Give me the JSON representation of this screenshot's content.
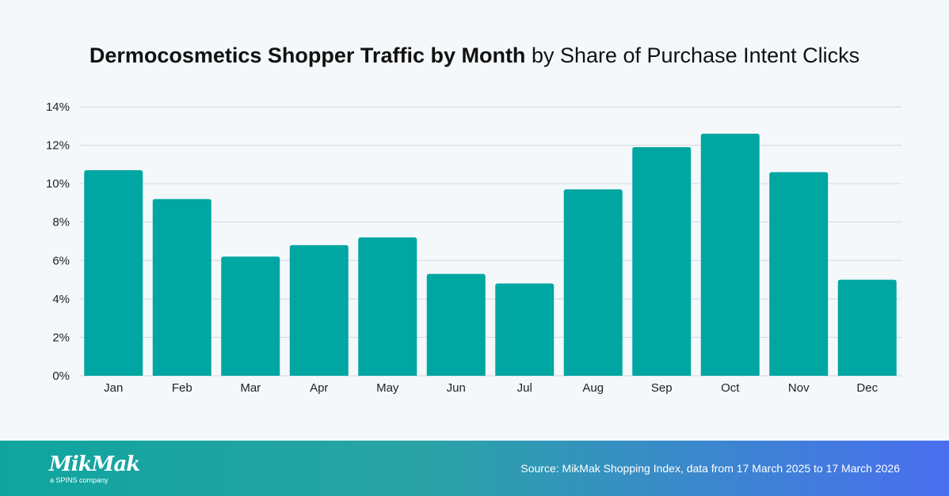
{
  "chart_data": {
    "type": "bar",
    "title": "Dermocosmetics Shopper Traffic by Month",
    "subtitle": "by Share of Purchase Intent Clicks",
    "categories": [
      "Jan",
      "Feb",
      "Mar",
      "Apr",
      "May",
      "Jun",
      "Jul",
      "Aug",
      "Sep",
      "Oct",
      "Nov",
      "Dec"
    ],
    "values": [
      10.7,
      9.2,
      6.2,
      6.8,
      7.2,
      5.3,
      4.8,
      9.7,
      11.9,
      12.6,
      10.6,
      5.0
    ],
    "ylim": [
      0,
      14
    ],
    "yticks": [
      0,
      2,
      4,
      6,
      8,
      10,
      12,
      14
    ],
    "ytick_labels": [
      "0%",
      "2%",
      "4%",
      "6%",
      "8%",
      "10%",
      "12%",
      "14%"
    ],
    "xlabel": "",
    "ylabel": "",
    "grid": true,
    "bar_color": "#00a6a1"
  },
  "footer": {
    "logo": "MikMak",
    "logo_sub": "a SPINS company",
    "source": "Source: MikMak Shopping Index, data from 17 March 2025 to 17 March 2026"
  }
}
